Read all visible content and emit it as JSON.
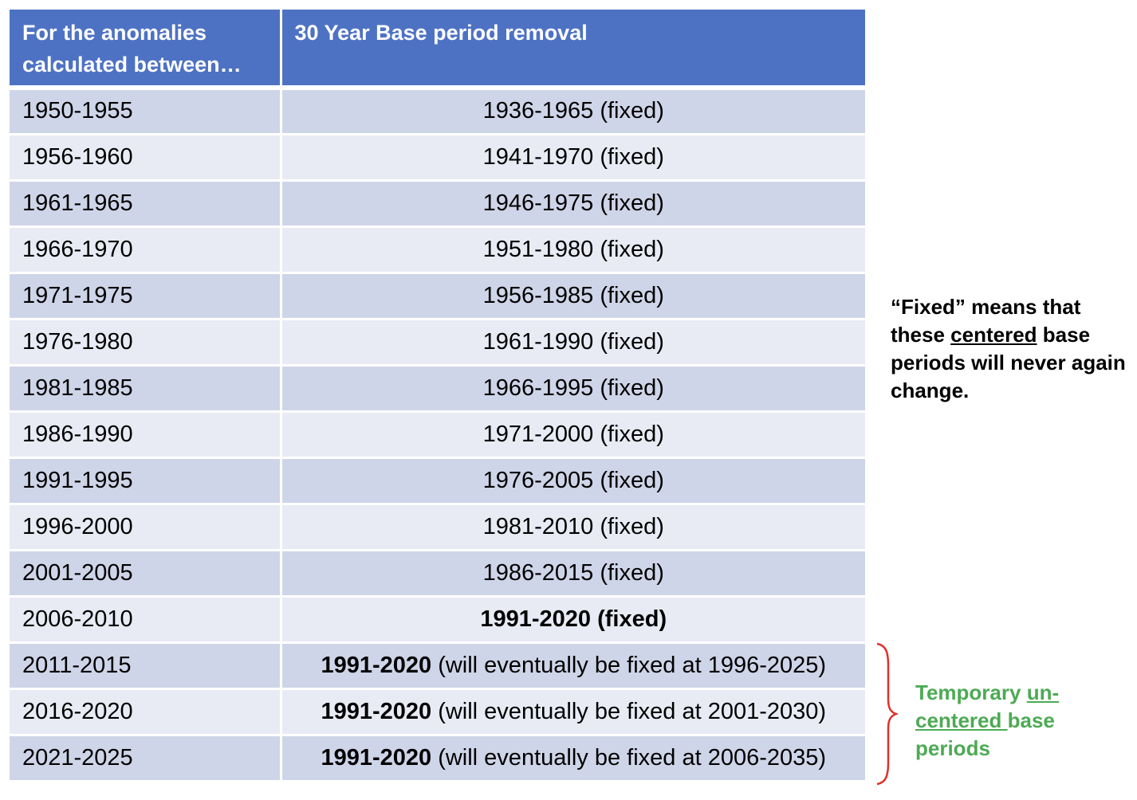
{
  "table": {
    "header": {
      "col1": "For the anomalies calculated between…",
      "col2": "30  Year Base period removal"
    },
    "rows": [
      {
        "period": "1950-1955",
        "bold": "",
        "rest": "1936-1965 (fixed)"
      },
      {
        "period": "1956-1960",
        "bold": "",
        "rest": "1941-1970 (fixed)"
      },
      {
        "period": "1961-1965",
        "bold": "",
        "rest": "1946-1975 (fixed)"
      },
      {
        "period": "1966-1970",
        "bold": "",
        "rest": "1951-1980 (fixed)"
      },
      {
        "period": "1971-1975",
        "bold": "",
        "rest": "1956-1985 (fixed)"
      },
      {
        "period": "1976-1980",
        "bold": "",
        "rest": "1961-1990 (fixed)"
      },
      {
        "period": "1981-1985",
        "bold": "",
        "rest": "1966-1995 (fixed)"
      },
      {
        "period": "1986-1990",
        "bold": "",
        "rest": "1971-2000 (fixed)"
      },
      {
        "period": "1991-1995",
        "bold": "",
        "rest": "1976-2005 (fixed)"
      },
      {
        "period": "1996-2000",
        "bold": "",
        "rest": "1981-2010 (fixed)"
      },
      {
        "period": "2001-2005",
        "bold": "",
        "rest": "1986-2015 (fixed)"
      },
      {
        "period": "2006-2010",
        "bold": "1991-2020 (fixed)",
        "rest": ""
      },
      {
        "period": "2011-2015",
        "bold": "1991-2020",
        "rest": " (will eventually be fixed at 1996-2025)"
      },
      {
        "period": "2016-2020",
        "bold": "1991-2020",
        "rest": " (will eventually be fixed at 2001-2030)"
      },
      {
        "period": "2021-2025",
        "bold": "1991-2020",
        "rest": " (will eventually be fixed at 2006-2035)"
      }
    ]
  },
  "notes": {
    "fixed": {
      "part1": "“Fixed” means that these ",
      "underlined": "centered",
      "part2": " base periods will never again change."
    },
    "temporary": {
      "part1": "Temporary ",
      "underlined": "un-centered ",
      "part2": "base periods"
    }
  },
  "colors": {
    "header_bg": "#4e72c3",
    "row_dark": "#cfd5e8",
    "row_light": "#e8ebf4",
    "brace": "#e0302a",
    "temporary_text": "#4daa54"
  }
}
